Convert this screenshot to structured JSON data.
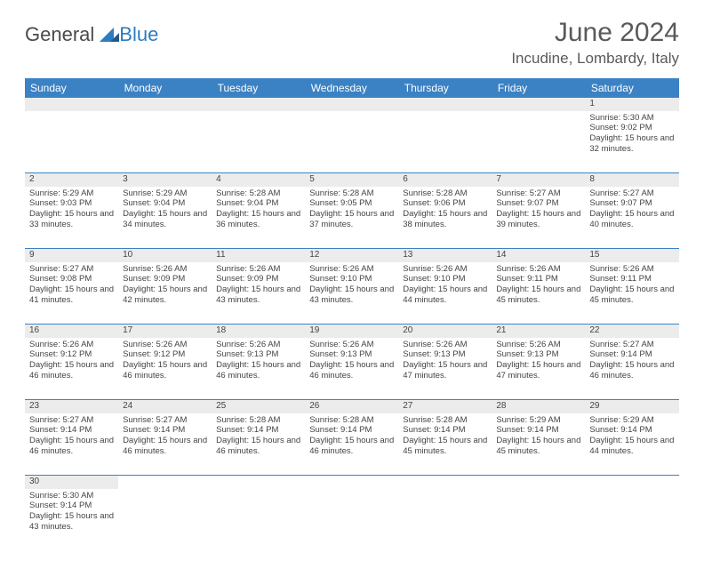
{
  "logo": {
    "word1": "General",
    "word2": "Blue"
  },
  "title": "June 2024",
  "location": "Incudine, Lombardy, Italy",
  "day_headers": [
    "Sunday",
    "Monday",
    "Tuesday",
    "Wednesday",
    "Thursday",
    "Friday",
    "Saturday"
  ],
  "header_bg": "#3b82c4",
  "header_fg": "#ffffff",
  "daynum_bg": "#ececec",
  "border_color": "#3b82c4",
  "weeks": [
    {
      "nums": [
        "",
        "",
        "",
        "",
        "",
        "",
        "1"
      ],
      "cells": [
        null,
        null,
        null,
        null,
        null,
        null,
        {
          "sunrise": "Sunrise: 5:30 AM",
          "sunset": "Sunset: 9:02 PM",
          "daylight": "Daylight: 15 hours and 32 minutes."
        }
      ]
    },
    {
      "nums": [
        "2",
        "3",
        "4",
        "5",
        "6",
        "7",
        "8"
      ],
      "cells": [
        {
          "sunrise": "Sunrise: 5:29 AM",
          "sunset": "Sunset: 9:03 PM",
          "daylight": "Daylight: 15 hours and 33 minutes."
        },
        {
          "sunrise": "Sunrise: 5:29 AM",
          "sunset": "Sunset: 9:04 PM",
          "daylight": "Daylight: 15 hours and 34 minutes."
        },
        {
          "sunrise": "Sunrise: 5:28 AM",
          "sunset": "Sunset: 9:04 PM",
          "daylight": "Daylight: 15 hours and 36 minutes."
        },
        {
          "sunrise": "Sunrise: 5:28 AM",
          "sunset": "Sunset: 9:05 PM",
          "daylight": "Daylight: 15 hours and 37 minutes."
        },
        {
          "sunrise": "Sunrise: 5:28 AM",
          "sunset": "Sunset: 9:06 PM",
          "daylight": "Daylight: 15 hours and 38 minutes."
        },
        {
          "sunrise": "Sunrise: 5:27 AM",
          "sunset": "Sunset: 9:07 PM",
          "daylight": "Daylight: 15 hours and 39 minutes."
        },
        {
          "sunrise": "Sunrise: 5:27 AM",
          "sunset": "Sunset: 9:07 PM",
          "daylight": "Daylight: 15 hours and 40 minutes."
        }
      ]
    },
    {
      "nums": [
        "9",
        "10",
        "11",
        "12",
        "13",
        "14",
        "15"
      ],
      "cells": [
        {
          "sunrise": "Sunrise: 5:27 AM",
          "sunset": "Sunset: 9:08 PM",
          "daylight": "Daylight: 15 hours and 41 minutes."
        },
        {
          "sunrise": "Sunrise: 5:26 AM",
          "sunset": "Sunset: 9:09 PM",
          "daylight": "Daylight: 15 hours and 42 minutes."
        },
        {
          "sunrise": "Sunrise: 5:26 AM",
          "sunset": "Sunset: 9:09 PM",
          "daylight": "Daylight: 15 hours and 43 minutes."
        },
        {
          "sunrise": "Sunrise: 5:26 AM",
          "sunset": "Sunset: 9:10 PM",
          "daylight": "Daylight: 15 hours and 43 minutes."
        },
        {
          "sunrise": "Sunrise: 5:26 AM",
          "sunset": "Sunset: 9:10 PM",
          "daylight": "Daylight: 15 hours and 44 minutes."
        },
        {
          "sunrise": "Sunrise: 5:26 AM",
          "sunset": "Sunset: 9:11 PM",
          "daylight": "Daylight: 15 hours and 45 minutes."
        },
        {
          "sunrise": "Sunrise: 5:26 AM",
          "sunset": "Sunset: 9:11 PM",
          "daylight": "Daylight: 15 hours and 45 minutes."
        }
      ]
    },
    {
      "nums": [
        "16",
        "17",
        "18",
        "19",
        "20",
        "21",
        "22"
      ],
      "cells": [
        {
          "sunrise": "Sunrise: 5:26 AM",
          "sunset": "Sunset: 9:12 PM",
          "daylight": "Daylight: 15 hours and 46 minutes."
        },
        {
          "sunrise": "Sunrise: 5:26 AM",
          "sunset": "Sunset: 9:12 PM",
          "daylight": "Daylight: 15 hours and 46 minutes."
        },
        {
          "sunrise": "Sunrise: 5:26 AM",
          "sunset": "Sunset: 9:13 PM",
          "daylight": "Daylight: 15 hours and 46 minutes."
        },
        {
          "sunrise": "Sunrise: 5:26 AM",
          "sunset": "Sunset: 9:13 PM",
          "daylight": "Daylight: 15 hours and 46 minutes."
        },
        {
          "sunrise": "Sunrise: 5:26 AM",
          "sunset": "Sunset: 9:13 PM",
          "daylight": "Daylight: 15 hours and 47 minutes."
        },
        {
          "sunrise": "Sunrise: 5:26 AM",
          "sunset": "Sunset: 9:13 PM",
          "daylight": "Daylight: 15 hours and 47 minutes."
        },
        {
          "sunrise": "Sunrise: 5:27 AM",
          "sunset": "Sunset: 9:14 PM",
          "daylight": "Daylight: 15 hours and 46 minutes."
        }
      ]
    },
    {
      "nums": [
        "23",
        "24",
        "25",
        "26",
        "27",
        "28",
        "29"
      ],
      "cells": [
        {
          "sunrise": "Sunrise: 5:27 AM",
          "sunset": "Sunset: 9:14 PM",
          "daylight": "Daylight: 15 hours and 46 minutes."
        },
        {
          "sunrise": "Sunrise: 5:27 AM",
          "sunset": "Sunset: 9:14 PM",
          "daylight": "Daylight: 15 hours and 46 minutes."
        },
        {
          "sunrise": "Sunrise: 5:28 AM",
          "sunset": "Sunset: 9:14 PM",
          "daylight": "Daylight: 15 hours and 46 minutes."
        },
        {
          "sunrise": "Sunrise: 5:28 AM",
          "sunset": "Sunset: 9:14 PM",
          "daylight": "Daylight: 15 hours and 46 minutes."
        },
        {
          "sunrise": "Sunrise: 5:28 AM",
          "sunset": "Sunset: 9:14 PM",
          "daylight": "Daylight: 15 hours and 45 minutes."
        },
        {
          "sunrise": "Sunrise: 5:29 AM",
          "sunset": "Sunset: 9:14 PM",
          "daylight": "Daylight: 15 hours and 45 minutes."
        },
        {
          "sunrise": "Sunrise: 5:29 AM",
          "sunset": "Sunset: 9:14 PM",
          "daylight": "Daylight: 15 hours and 44 minutes."
        }
      ]
    },
    {
      "nums": [
        "30",
        "",
        "",
        "",
        "",
        "",
        ""
      ],
      "cells": [
        {
          "sunrise": "Sunrise: 5:30 AM",
          "sunset": "Sunset: 9:14 PM",
          "daylight": "Daylight: 15 hours and 43 minutes."
        },
        null,
        null,
        null,
        null,
        null,
        null
      ]
    }
  ]
}
